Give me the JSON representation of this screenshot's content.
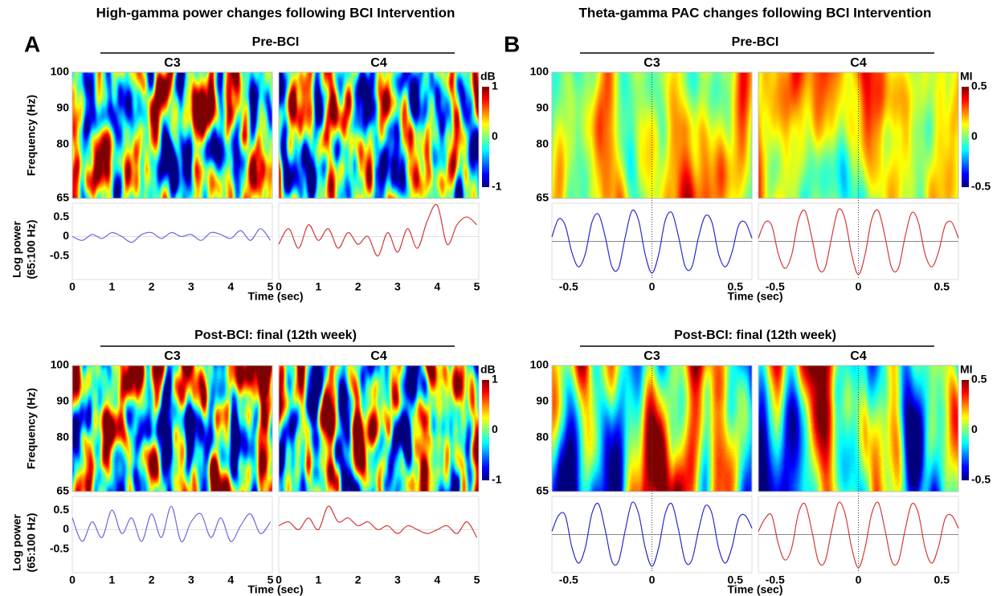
{
  "panels": [
    {
      "label": "A",
      "title": "High-gamma power changes following BCI Intervention",
      "colorbar_label": "dB",
      "colorbar_lim": [
        -1,
        1
      ],
      "colorbar_ticks": [
        -1,
        0,
        1
      ],
      "y_label": "Frequency (Hz)",
      "ylim": [
        65,
        100
      ],
      "yticks": [
        65,
        80,
        90,
        100
      ],
      "trace_y_label": [
        "Log power",
        "(65:100 Hz)"
      ],
      "trace_ylim": [
        -1.1,
        0.85
      ],
      "trace_yticks": [
        -0.5,
        0,
        0.5
      ],
      "x_label": "Time (sec)",
      "xlim": [
        0,
        5.05
      ],
      "xticks": [
        0,
        1,
        2,
        3,
        4,
        5
      ],
      "x": [
        0,
        0.25,
        0.5,
        0.75,
        1,
        1.25,
        1.5,
        1.75,
        2,
        2.25,
        2.5,
        2.75,
        3,
        3.25,
        3.5,
        3.75,
        4,
        4.25,
        4.5,
        4.75,
        5
      ],
      "rows": [
        {
          "title": "Pre-BCI",
          "channels": [
            {
              "name": "C3",
              "color": "#6a6ae0",
              "values": [
                0,
                -0.1,
                0.05,
                -0.05,
                0.1,
                0,
                -0.15,
                0.05,
                0.1,
                -0.05,
                0.1,
                0,
                0.05,
                -0.1,
                0.1,
                0.05,
                -0.05,
                0.15,
                -0.1,
                0.2,
                -0.1
              ]
            },
            {
              "name": "C4",
              "color": "#d23a3a",
              "values": [
                -0.2,
                0.2,
                -0.3,
                0.3,
                -0.1,
                0.2,
                -0.3,
                0.1,
                -0.2,
                0,
                -0.5,
                0.1,
                -0.4,
                0.2,
                -0.3,
                0.4,
                0.8,
                -0.2,
                0.3,
                0.5,
                0.3
              ]
            }
          ]
        },
        {
          "title": "Post-BCI: final (12th week)",
          "channels": [
            {
              "name": "C3",
              "color": "#6a6ae0",
              "values": [
                0.3,
                -0.3,
                0.2,
                -0.2,
                0.5,
                -0.1,
                0.3,
                -0.3,
                0.4,
                -0.2,
                0.6,
                -0.3,
                0.2,
                0.4,
                -0.2,
                0.3,
                -0.3,
                0.1,
                0.4,
                -0.1,
                0.2
              ]
            },
            {
              "name": "C4",
              "color": "#d23a3a",
              "values": [
                0.1,
                0.2,
                0,
                0.3,
                0,
                0.6,
                0.2,
                0.3,
                0.1,
                0.2,
                0,
                0.1,
                -0.1,
                0.1,
                0,
                -0.1,
                0,
                0.1,
                -0.1,
                0.2,
                -0.2
              ]
            }
          ]
        }
      ]
    },
    {
      "label": "B",
      "title": "Theta-gamma PAC changes following BCI Intervention",
      "colorbar_label": "MI",
      "colorbar_lim": [
        -0.5,
        0.5
      ],
      "colorbar_ticks": [
        -0.5,
        0,
        0.5
      ],
      "ylim": [
        65,
        100
      ],
      "yticks": [
        65,
        80,
        90,
        100
      ],
      "trace_ylim": [
        -1.2,
        1.2
      ],
      "vline_at_zero": true,
      "x_label": "Time (sec)",
      "xlim": [
        -0.6,
        0.6
      ],
      "xticks": [
        -0.5,
        0,
        0.5
      ],
      "x": [
        -0.6,
        -0.56,
        -0.52,
        -0.48,
        -0.44,
        -0.4,
        -0.36,
        -0.32,
        -0.28,
        -0.24,
        -0.2,
        -0.16,
        -0.12,
        -0.08,
        -0.04,
        0,
        0.04,
        0.08,
        0.12,
        0.16,
        0.2,
        0.24,
        0.28,
        0.32,
        0.36,
        0.4,
        0.44,
        0.48,
        0.52,
        0.56,
        0.6
      ],
      "rows": [
        {
          "title": "Pre-BCI",
          "channels": [
            {
              "name": "C3",
              "color": "#2a2ac8",
              "values": [
                0.14,
                0.7,
                0.5,
                -0.35,
                -0.8,
                -0.4,
                0.6,
                0.85,
                0.14,
                -0.8,
                -0.84,
                0.14,
                0.96,
                0.66,
                -0.42,
                -1,
                -0.42,
                0.66,
                0.9,
                0.14,
                -0.8,
                -0.8,
                0.14,
                0.8,
                0.6,
                -0.4,
                -0.8,
                -0.35,
                0.5,
                0.6,
                0.1
              ]
            },
            {
              "name": "C4",
              "color": "#d23a3a",
              "values": [
                0.1,
                0.6,
                0.5,
                -0.4,
                -0.85,
                -0.42,
                0.66,
                0.96,
                0.14,
                -0.84,
                -0.84,
                0.14,
                1,
                0.7,
                -0.42,
                -1.05,
                -0.42,
                0.7,
                0.96,
                0.14,
                -0.84,
                -0.84,
                0.14,
                0.9,
                0.6,
                -0.4,
                -0.8,
                -0.35,
                0.5,
                0.6,
                0.1
              ]
            }
          ]
        },
        {
          "title": "Post-BCI: final (12th week)",
          "channels": [
            {
              "name": "C3",
              "color": "#2a2ac8",
              "values": [
                0.1,
                0.6,
                0.6,
                -0.4,
                -0.9,
                -0.42,
                0.66,
                0.96,
                0.14,
                -0.84,
                -0.84,
                0.14,
                1,
                0.66,
                -0.42,
                -1,
                -0.42,
                0.66,
                0.96,
                0.14,
                -0.84,
                -0.8,
                0.14,
                0.9,
                0.66,
                -0.42,
                -0.9,
                -0.4,
                0.5,
                0.6,
                0.2
              ]
            },
            {
              "name": "C4",
              "color": "#d23a3a",
              "values": [
                0.1,
                0.5,
                0.6,
                -0.3,
                -0.8,
                -0.42,
                0.66,
                0.96,
                0.14,
                -0.84,
                -0.84,
                0.14,
                1,
                0.66,
                -0.42,
                -1.05,
                -0.42,
                0.66,
                1,
                0.14,
                -0.84,
                -0.84,
                0.14,
                0.96,
                0.66,
                -0.42,
                -0.9,
                -0.4,
                0.5,
                0.6,
                0.2
              ]
            }
          ]
        }
      ]
    }
  ]
}
